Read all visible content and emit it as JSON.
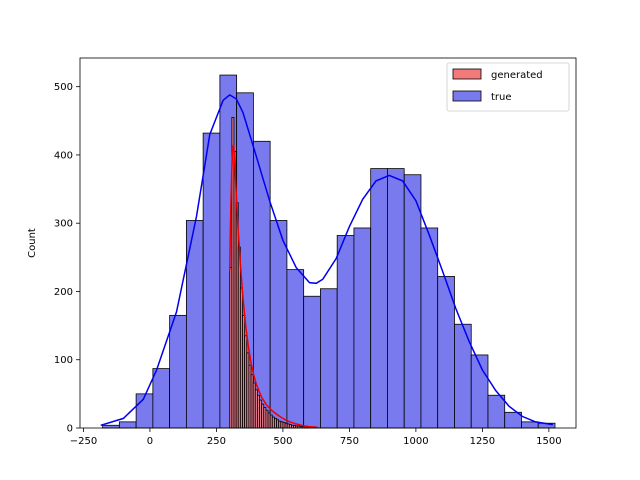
{
  "chart_data": {
    "type": "histogram",
    "title": "",
    "xlabel": "",
    "ylabel": "Count",
    "xlim": [
      -263,
      1602
    ],
    "ylim": [
      0,
      542
    ],
    "xticks": [
      -250,
      0,
      250,
      500,
      750,
      1000,
      1250,
      1500
    ],
    "xtick_labels": [
      "−250",
      "0",
      "250",
      "500",
      "750",
      "1000",
      "1250",
      "1500"
    ],
    "yticks": [
      0,
      100,
      200,
      300,
      400,
      500
    ],
    "ytick_labels": [
      "0",
      "100",
      "200",
      "300",
      "400",
      "500"
    ],
    "grid": false,
    "legend_position": "top-right",
    "series": [
      {
        "name": "true",
        "fill": "#7a7aef",
        "edge": "#000000",
        "kde_color": "#0000ee",
        "bins": [
          [
            -178,
            -115,
            4
          ],
          [
            -115,
            -52,
            9
          ],
          [
            -52,
            11,
            50
          ],
          [
            11,
            74,
            87
          ],
          [
            74,
            137,
            165
          ],
          [
            137,
            200,
            304
          ],
          [
            200,
            263,
            432
          ],
          [
            263,
            326,
            517
          ],
          [
            326,
            389,
            491
          ],
          [
            389,
            452,
            420
          ],
          [
            452,
            515,
            304
          ],
          [
            515,
            578,
            232
          ],
          [
            578,
            641,
            193
          ],
          [
            641,
            704,
            204
          ],
          [
            704,
            767,
            282
          ],
          [
            767,
            830,
            293
          ],
          [
            830,
            893,
            380
          ],
          [
            893,
            956,
            380
          ],
          [
            956,
            1019,
            371
          ],
          [
            1019,
            1082,
            293
          ],
          [
            1082,
            1145,
            222
          ],
          [
            1145,
            1208,
            152
          ],
          [
            1208,
            1271,
            107
          ],
          [
            1271,
            1334,
            48
          ],
          [
            1334,
            1397,
            23
          ],
          [
            1397,
            1460,
            9
          ],
          [
            1460,
            1523,
            7
          ]
        ],
        "kde": [
          [
            -185,
            4
          ],
          [
            -100,
            14
          ],
          [
            -25,
            42
          ],
          [
            25,
            85
          ],
          [
            100,
            170
          ],
          [
            175,
            310
          ],
          [
            225,
            430
          ],
          [
            275,
            480
          ],
          [
            300,
            488
          ],
          [
            325,
            482
          ],
          [
            350,
            462
          ],
          [
            400,
            398
          ],
          [
            450,
            333
          ],
          [
            500,
            275
          ],
          [
            550,
            235
          ],
          [
            600,
            213
          ],
          [
            625,
            212
          ],
          [
            650,
            218
          ],
          [
            700,
            248
          ],
          [
            750,
            295
          ],
          [
            800,
            335
          ],
          [
            850,
            362
          ],
          [
            900,
            370
          ],
          [
            950,
            362
          ],
          [
            1000,
            333
          ],
          [
            1050,
            283
          ],
          [
            1100,
            230
          ],
          [
            1150,
            175
          ],
          [
            1200,
            127
          ],
          [
            1250,
            85
          ],
          [
            1300,
            55
          ],
          [
            1350,
            32
          ],
          [
            1400,
            17
          ],
          [
            1450,
            9
          ],
          [
            1515,
            5
          ]
        ]
      },
      {
        "name": "generated",
        "fill": "#f27a7a",
        "edge": "#000000",
        "kde_color": "#ee0000",
        "bins": [
          [
            300,
            308,
            235
          ],
          [
            308,
            316,
            455
          ],
          [
            316,
            324,
            405
          ],
          [
            324,
            332,
            330
          ],
          [
            332,
            340,
            265
          ],
          [
            340,
            348,
            205
          ],
          [
            348,
            356,
            165
          ],
          [
            356,
            364,
            135
          ],
          [
            364,
            372,
            110
          ],
          [
            372,
            380,
            92
          ],
          [
            380,
            388,
            78
          ],
          [
            388,
            396,
            66
          ],
          [
            396,
            404,
            56
          ],
          [
            404,
            412,
            48
          ],
          [
            412,
            420,
            41
          ],
          [
            420,
            428,
            35
          ],
          [
            428,
            436,
            30
          ],
          [
            436,
            444,
            26
          ],
          [
            444,
            452,
            22
          ],
          [
            452,
            460,
            19
          ],
          [
            460,
            468,
            16
          ],
          [
            468,
            476,
            14
          ],
          [
            476,
            484,
            12
          ],
          [
            484,
            492,
            10
          ],
          [
            492,
            500,
            9
          ],
          [
            500,
            508,
            8
          ],
          [
            508,
            516,
            7
          ],
          [
            516,
            524,
            6
          ],
          [
            524,
            532,
            5
          ],
          [
            532,
            540,
            4
          ],
          [
            540,
            548,
            4
          ],
          [
            548,
            556,
            3
          ],
          [
            556,
            564,
            3
          ],
          [
            564,
            572,
            2
          ],
          [
            572,
            580,
            2
          ],
          [
            580,
            588,
            2
          ],
          [
            588,
            596,
            1
          ],
          [
            596,
            604,
            1
          ],
          [
            604,
            612,
            1
          ],
          [
            612,
            620,
            1
          ]
        ],
        "kde": [
          [
            300,
            230
          ],
          [
            303,
            300
          ],
          [
            307,
            370
          ],
          [
            311,
            410
          ],
          [
            315,
            415
          ],
          [
            320,
            380
          ],
          [
            330,
            300
          ],
          [
            340,
            240
          ],
          [
            350,
            190
          ],
          [
            360,
            150
          ],
          [
            370,
            120
          ],
          [
            380,
            96
          ],
          [
            390,
            78
          ],
          [
            400,
            64
          ],
          [
            420,
            45
          ],
          [
            440,
            33
          ],
          [
            460,
            25
          ],
          [
            480,
            19
          ],
          [
            500,
            14
          ],
          [
            520,
            10
          ],
          [
            540,
            7
          ],
          [
            560,
            5
          ],
          [
            580,
            3
          ],
          [
            600,
            2
          ],
          [
            630,
            1
          ]
        ]
      }
    ]
  }
}
